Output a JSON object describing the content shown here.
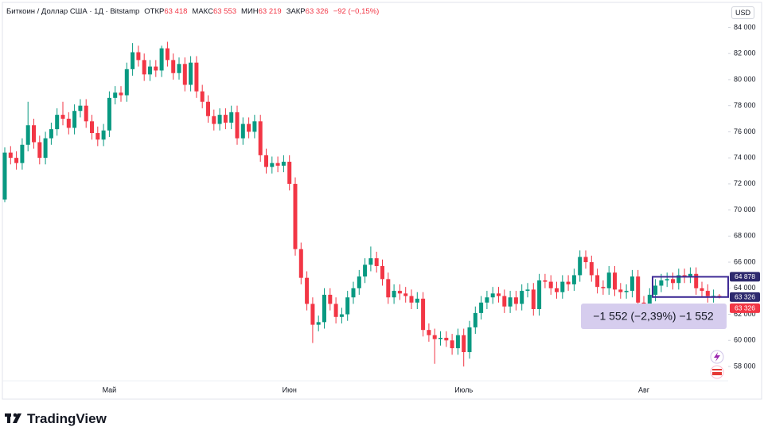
{
  "header": {
    "symbol": "Биткоин / Доллар США · 1Д · Bitstamp",
    "ohlc": [
      {
        "label": "ОТКР",
        "value": "63 418"
      },
      {
        "label": "МАКС",
        "value": "63 553"
      },
      {
        "label": "МИН",
        "value": "63 219"
      },
      {
        "label": "ЗАКР",
        "value": "63 326"
      }
    ],
    "change": "−92 (−0,15%)",
    "currency": "USD"
  },
  "branding": "TradingView",
  "chart_data": {
    "type": "candlestick",
    "categories": [
      null,
      null,
      null,
      null,
      null,
      null,
      null,
      null,
      null,
      null,
      null,
      null,
      null,
      null,
      null,
      null,
      null,
      null,
      "Май",
      null,
      null,
      null,
      null,
      null,
      null,
      null,
      null,
      null,
      null,
      null,
      null,
      null,
      null,
      null,
      null,
      null,
      null,
      null,
      null,
      null,
      null,
      null,
      null,
      null,
      null,
      null,
      null,
      null,
      null,
      "Июн",
      null,
      null,
      null,
      null,
      null,
      null,
      null,
      null,
      null,
      null,
      null,
      null,
      null,
      null,
      null,
      null,
      null,
      null,
      null,
      null,
      null,
      null,
      null,
      null,
      null,
      null,
      null,
      null,
      null,
      "Июль",
      null,
      null,
      null,
      null,
      null,
      null,
      null,
      null,
      null,
      null,
      null,
      null,
      null,
      null,
      null,
      null,
      null,
      null,
      null,
      null,
      null,
      null,
      null,
      null,
      null,
      null,
      null,
      null,
      null,
      null,
      "Авг",
      null,
      null,
      null,
      null,
      null,
      null,
      null,
      null,
      null,
      null,
      null,
      null,
      null
    ],
    "open": [
      70800,
      74400,
      74000,
      73600,
      75000,
      76500,
      75200,
      74000,
      75500,
      76200,
      77300,
      77000,
      76300,
      77600,
      78000,
      76800,
      75900,
      75400,
      76100,
      78600,
      79000,
      78800,
      80800,
      82100,
      81500,
      80400,
      81000,
      80700,
      82400,
      81500,
      80500,
      81200,
      79600,
      81300,
      79100,
      78300,
      77200,
      76600,
      77300,
      76700,
      77500,
      75500,
      76600,
      76000,
      76800,
      74200,
      73300,
      73600,
      73400,
      73700,
      72000,
      67000,
      64800,
      62800,
      61200,
      61400,
      63500,
      62800,
      61800,
      62000,
      63300,
      64000,
      64900,
      65800,
      66300,
      65700,
      64700,
      63300,
      63800,
      63600,
      63400,
      62900,
      63200,
      60800,
      60400,
      60100,
      60200,
      60000,
      59400,
      60400,
      59100,
      61000,
      62100,
      62900,
      63300,
      63600,
      63400,
      62600,
      63300,
      62800,
      63800,
      63900,
      62400,
      64600,
      64500,
      64000,
      63700,
      64500,
      64300,
      65000,
      66400,
      66000,
      65000,
      64100,
      64000,
      65200,
      63900,
      63700,
      63800,
      64900,
      62900,
      62500,
      63500,
      64200,
      64600,
      64700,
      64400,
      65000,
      64900,
      65100,
      64000,
      63800,
      63400,
      63418
    ],
    "high": [
      74800,
      74900,
      74500,
      75500,
      78300,
      77000,
      75700,
      76000,
      76700,
      77800,
      78300,
      77500,
      78100,
      78500,
      78500,
      77300,
      76400,
      76600,
      79100,
      79500,
      79500,
      81300,
      82800,
      82600,
      82000,
      81500,
      81500,
      82600,
      82900,
      82000,
      81700,
      81700,
      81800,
      81800,
      79600,
      78800,
      77700,
      77800,
      77800,
      78000,
      78000,
      77100,
      77100,
      77300,
      77300,
      74700,
      74100,
      74100,
      74200,
      74200,
      72500,
      67500,
      65300,
      63300,
      61900,
      64000,
      64000,
      63300,
      62500,
      63800,
      64500,
      65400,
      66300,
      67200,
      66800,
      66200,
      65200,
      64300,
      64300,
      64100,
      63900,
      63700,
      63700,
      61300,
      60900,
      60700,
      60700,
      60500,
      60900,
      60900,
      61500,
      62600,
      63400,
      63800,
      64100,
      64100,
      63900,
      63800,
      63800,
      64300,
      64400,
      64400,
      65100,
      65100,
      65000,
      64500,
      65000,
      65000,
      65500,
      66900,
      66900,
      66500,
      65500,
      64600,
      65700,
      65700,
      64400,
      64300,
      65400,
      65400,
      63400,
      64000,
      64700,
      65100,
      65200,
      65200,
      65500,
      65500,
      65600,
      65600,
      64500,
      64300,
      63900,
      63553
    ],
    "low": [
      70600,
      73500,
      73100,
      73100,
      74500,
      74700,
      73500,
      73500,
      75000,
      75700,
      76500,
      75800,
      75800,
      77100,
      76300,
      75400,
      74900,
      74900,
      75600,
      78100,
      78300,
      78300,
      80300,
      81000,
      79900,
      79900,
      80200,
      80200,
      81000,
      80000,
      80000,
      79100,
      79100,
      78600,
      77800,
      76700,
      76100,
      76100,
      76200,
      76200,
      75000,
      75000,
      75500,
      75500,
      73700,
      72800,
      72800,
      72900,
      72900,
      71500,
      66500,
      64300,
      62300,
      59800,
      60700,
      60900,
      62300,
      61300,
      61300,
      61500,
      62800,
      63500,
      64400,
      65300,
      65200,
      64200,
      62800,
      62800,
      63100,
      62900,
      62400,
      62400,
      60300,
      59900,
      58200,
      59600,
      59500,
      58900,
      58900,
      58000,
      58600,
      60500,
      61600,
      62400,
      62800,
      62900,
      62100,
      62100,
      62300,
      62300,
      63300,
      61900,
      61900,
      64000,
      63500,
      63200,
      63200,
      63800,
      63800,
      64500,
      65500,
      64500,
      63600,
      63500,
      63500,
      63400,
      63200,
      63200,
      63300,
      62400,
      62000,
      62000,
      63000,
      63700,
      64100,
      63900,
      63900,
      64400,
      64400,
      63500,
      63300,
      62900,
      62900,
      63219
    ],
    "close": [
      74400,
      74000,
      73600,
      75000,
      76500,
      75200,
      74000,
      75500,
      76200,
      77300,
      77000,
      76300,
      77600,
      78000,
      76800,
      75900,
      75400,
      76100,
      78600,
      79000,
      78800,
      80800,
      82100,
      81500,
      80400,
      81000,
      80700,
      82400,
      81500,
      80500,
      81200,
      79600,
      81300,
      79100,
      78300,
      77200,
      76600,
      77300,
      76700,
      77500,
      75500,
      76600,
      76000,
      76800,
      74200,
      73300,
      73600,
      73400,
      73700,
      72000,
      67000,
      64800,
      62800,
      61200,
      61400,
      63500,
      62800,
      61800,
      62000,
      63300,
      64000,
      64900,
      65800,
      66300,
      65700,
      64700,
      63300,
      63800,
      63600,
      63400,
      62900,
      63200,
      60800,
      60400,
      60100,
      60200,
      60000,
      59400,
      60400,
      59100,
      61000,
      62100,
      62900,
      63300,
      63600,
      63400,
      62600,
      63300,
      62800,
      63800,
      63900,
      62400,
      64600,
      64500,
      64000,
      63700,
      64500,
      64300,
      65000,
      66400,
      66000,
      65000,
      64100,
      64000,
      65200,
      63900,
      63700,
      63800,
      64900,
      62900,
      62500,
      63500,
      64200,
      64600,
      64700,
      64400,
      65000,
      64900,
      65100,
      64000,
      63800,
      63400,
      63418,
      63326
    ],
    "up_color": "#089981",
    "down_color": "#f23645",
    "ylim": [
      56900,
      85800
    ],
    "yticks": [
      {
        "value": 58000,
        "label": "58 000"
      },
      {
        "value": 60000,
        "label": "60 000"
      },
      {
        "value": 62000,
        "label": "62 000"
      },
      {
        "value": 64000,
        "label": "64 000"
      },
      {
        "value": 66000,
        "label": "66 000"
      },
      {
        "value": 68000,
        "label": "68 000"
      },
      {
        "value": 70000,
        "label": "70 000"
      },
      {
        "value": 72000,
        "label": "72 000"
      },
      {
        "value": 74000,
        "label": "74 000"
      },
      {
        "value": 76000,
        "label": "76 000"
      },
      {
        "value": 78000,
        "label": "78 000"
      },
      {
        "value": 80000,
        "label": "80 000"
      },
      {
        "value": 82000,
        "label": "82 000"
      },
      {
        "value": 84000,
        "label": "84 000"
      }
    ],
    "grid": false,
    "price_labels": [
      {
        "value": 64878,
        "label": "64 878",
        "color": "#2e2a6e"
      },
      {
        "value": 63326,
        "label": "63 326",
        "color": "#2e2a6e"
      },
      {
        "value": 63326,
        "label": "63 326",
        "color": "#f23645"
      }
    ],
    "measure": {
      "text": "−1 552 (−2,39%) −1 552",
      "color": "#3f2b96"
    }
  }
}
